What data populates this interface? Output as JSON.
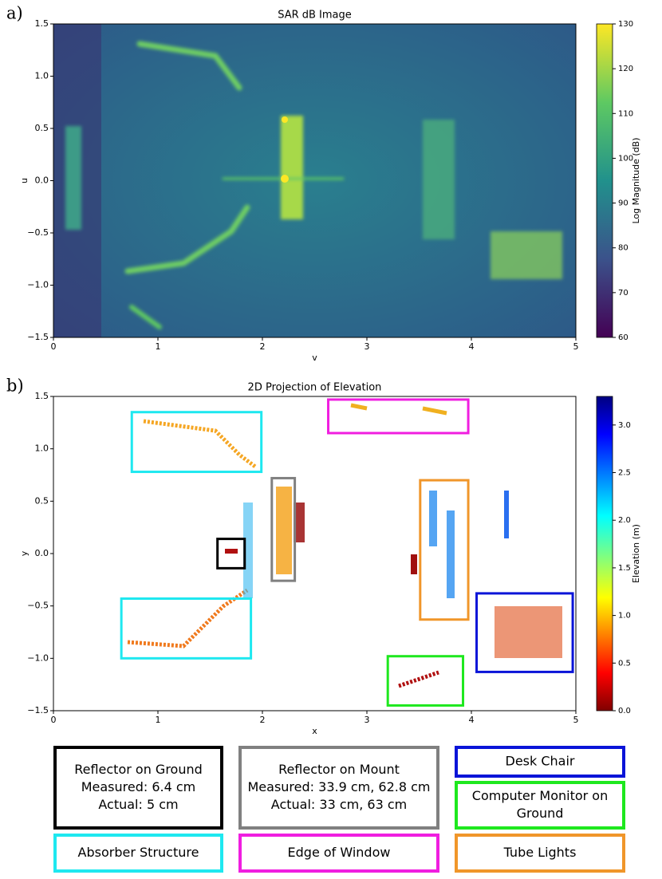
{
  "chart_data": [
    {
      "type": "heatmap",
      "panel_label": "a)",
      "title": "SAR dB Image",
      "x_label": "v",
      "y_label": "u",
      "xlim": [
        0,
        5
      ],
      "xticks": [
        0,
        1,
        2,
        3,
        4,
        5
      ],
      "ylim": [
        -1.5,
        1.5
      ],
      "yticks": [
        {
          "value": -1.5,
          "label": "−1.5"
        },
        {
          "value": -1.0,
          "label": "−1.0"
        },
        {
          "value": -0.5,
          "label": "−0.5"
        },
        {
          "value": 0.0,
          "label": "0.0"
        },
        {
          "value": 0.5,
          "label": "0.5"
        },
        {
          "value": 1.0,
          "label": "1.0"
        },
        {
          "value": 1.5,
          "label": "1.5"
        }
      ],
      "colorbar": {
        "label": "Log Magnitude (dB)",
        "colormap": "viridis",
        "lim": [
          60,
          130
        ],
        "ticks": [
          60,
          70,
          80,
          90,
          100,
          110,
          120,
          130
        ]
      }
    },
    {
      "type": "heatmap",
      "panel_label": "b)",
      "title": "2D Projection of Elevation",
      "x_label": "x",
      "y_label": "y",
      "xlim": [
        0,
        5
      ],
      "xticks": [
        0,
        1,
        2,
        3,
        4,
        5
      ],
      "ylim": [
        -1.5,
        1.5
      ],
      "yticks": [
        {
          "value": -1.5,
          "label": "−1.5"
        },
        {
          "value": -1.0,
          "label": "−1.0"
        },
        {
          "value": -0.5,
          "label": "−0.5"
        },
        {
          "value": 0.0,
          "label": "0.0"
        },
        {
          "value": 0.5,
          "label": "0.5"
        },
        {
          "value": 1.0,
          "label": "1.0"
        },
        {
          "value": 1.5,
          "label": "1.5"
        }
      ],
      "colorbar": {
        "label": "Elevation (m)",
        "colormap": "jet_r",
        "lim": [
          0,
          3.3
        ],
        "ticks": [
          {
            "value": 0.0,
            "label": "0.0"
          },
          {
            "value": 0.5,
            "label": "0.5"
          },
          {
            "value": 1.0,
            "label": "1.0"
          },
          {
            "value": 1.5,
            "label": "1.5"
          },
          {
            "value": 2.0,
            "label": "2.0"
          },
          {
            "value": 2.5,
            "label": "2.5"
          },
          {
            "value": 3.0,
            "label": "3.0"
          }
        ]
      },
      "annotations": [
        {
          "lines": [
            "Reflector on Ground",
            "Measured: 6.4 cm",
            "Actual: 5 cm"
          ],
          "color": "#000000",
          "boxes": [
            {
              "x": [
                1.57,
                1.83
              ],
              "y": [
                -0.14,
                0.14
              ]
            }
          ]
        },
        {
          "lines": [
            "Reflector on Mount",
            "Measured: 33.9 cm, 62.8 cm",
            "Actual: 33 cm, 63 cm"
          ],
          "color": "#808080",
          "boxes": [
            {
              "x": [
                2.09,
                2.31
              ],
              "y": [
                -0.26,
                0.72
              ]
            }
          ]
        },
        {
          "lines": [
            "Desk Chair"
          ],
          "color": "#0a14d8",
          "boxes": [
            {
              "x": [
                4.05,
                4.97
              ],
              "y": [
                -1.13,
                -0.38
              ]
            }
          ]
        },
        {
          "lines": [
            "Computer Monitor on",
            "Ground"
          ],
          "color": "#1ee81e",
          "boxes": [
            {
              "x": [
                3.2,
                3.92
              ],
              "y": [
                -1.45,
                -0.98
              ]
            }
          ]
        },
        {
          "lines": [
            "Absorber Structure"
          ],
          "color": "#1ee8f0",
          "boxes": [
            {
              "x": [
                0.75,
                1.99
              ],
              "y": [
                0.78,
                1.35
              ]
            },
            {
              "x": [
                0.65,
                1.89
              ],
              "y": [
                -1.0,
                -0.43
              ]
            }
          ]
        },
        {
          "lines": [
            "Edge of Window"
          ],
          "color": "#f01ee0",
          "boxes": [
            {
              "x": [
                2.63,
                3.97
              ],
              "y": [
                1.15,
                1.47
              ]
            }
          ]
        },
        {
          "lines": [
            "Tube Lights"
          ],
          "color": "#f0962a",
          "boxes": [
            {
              "x": [
                3.51,
                3.97
              ],
              "y": [
                -0.63,
                0.7
              ]
            }
          ]
        }
      ]
    }
  ]
}
